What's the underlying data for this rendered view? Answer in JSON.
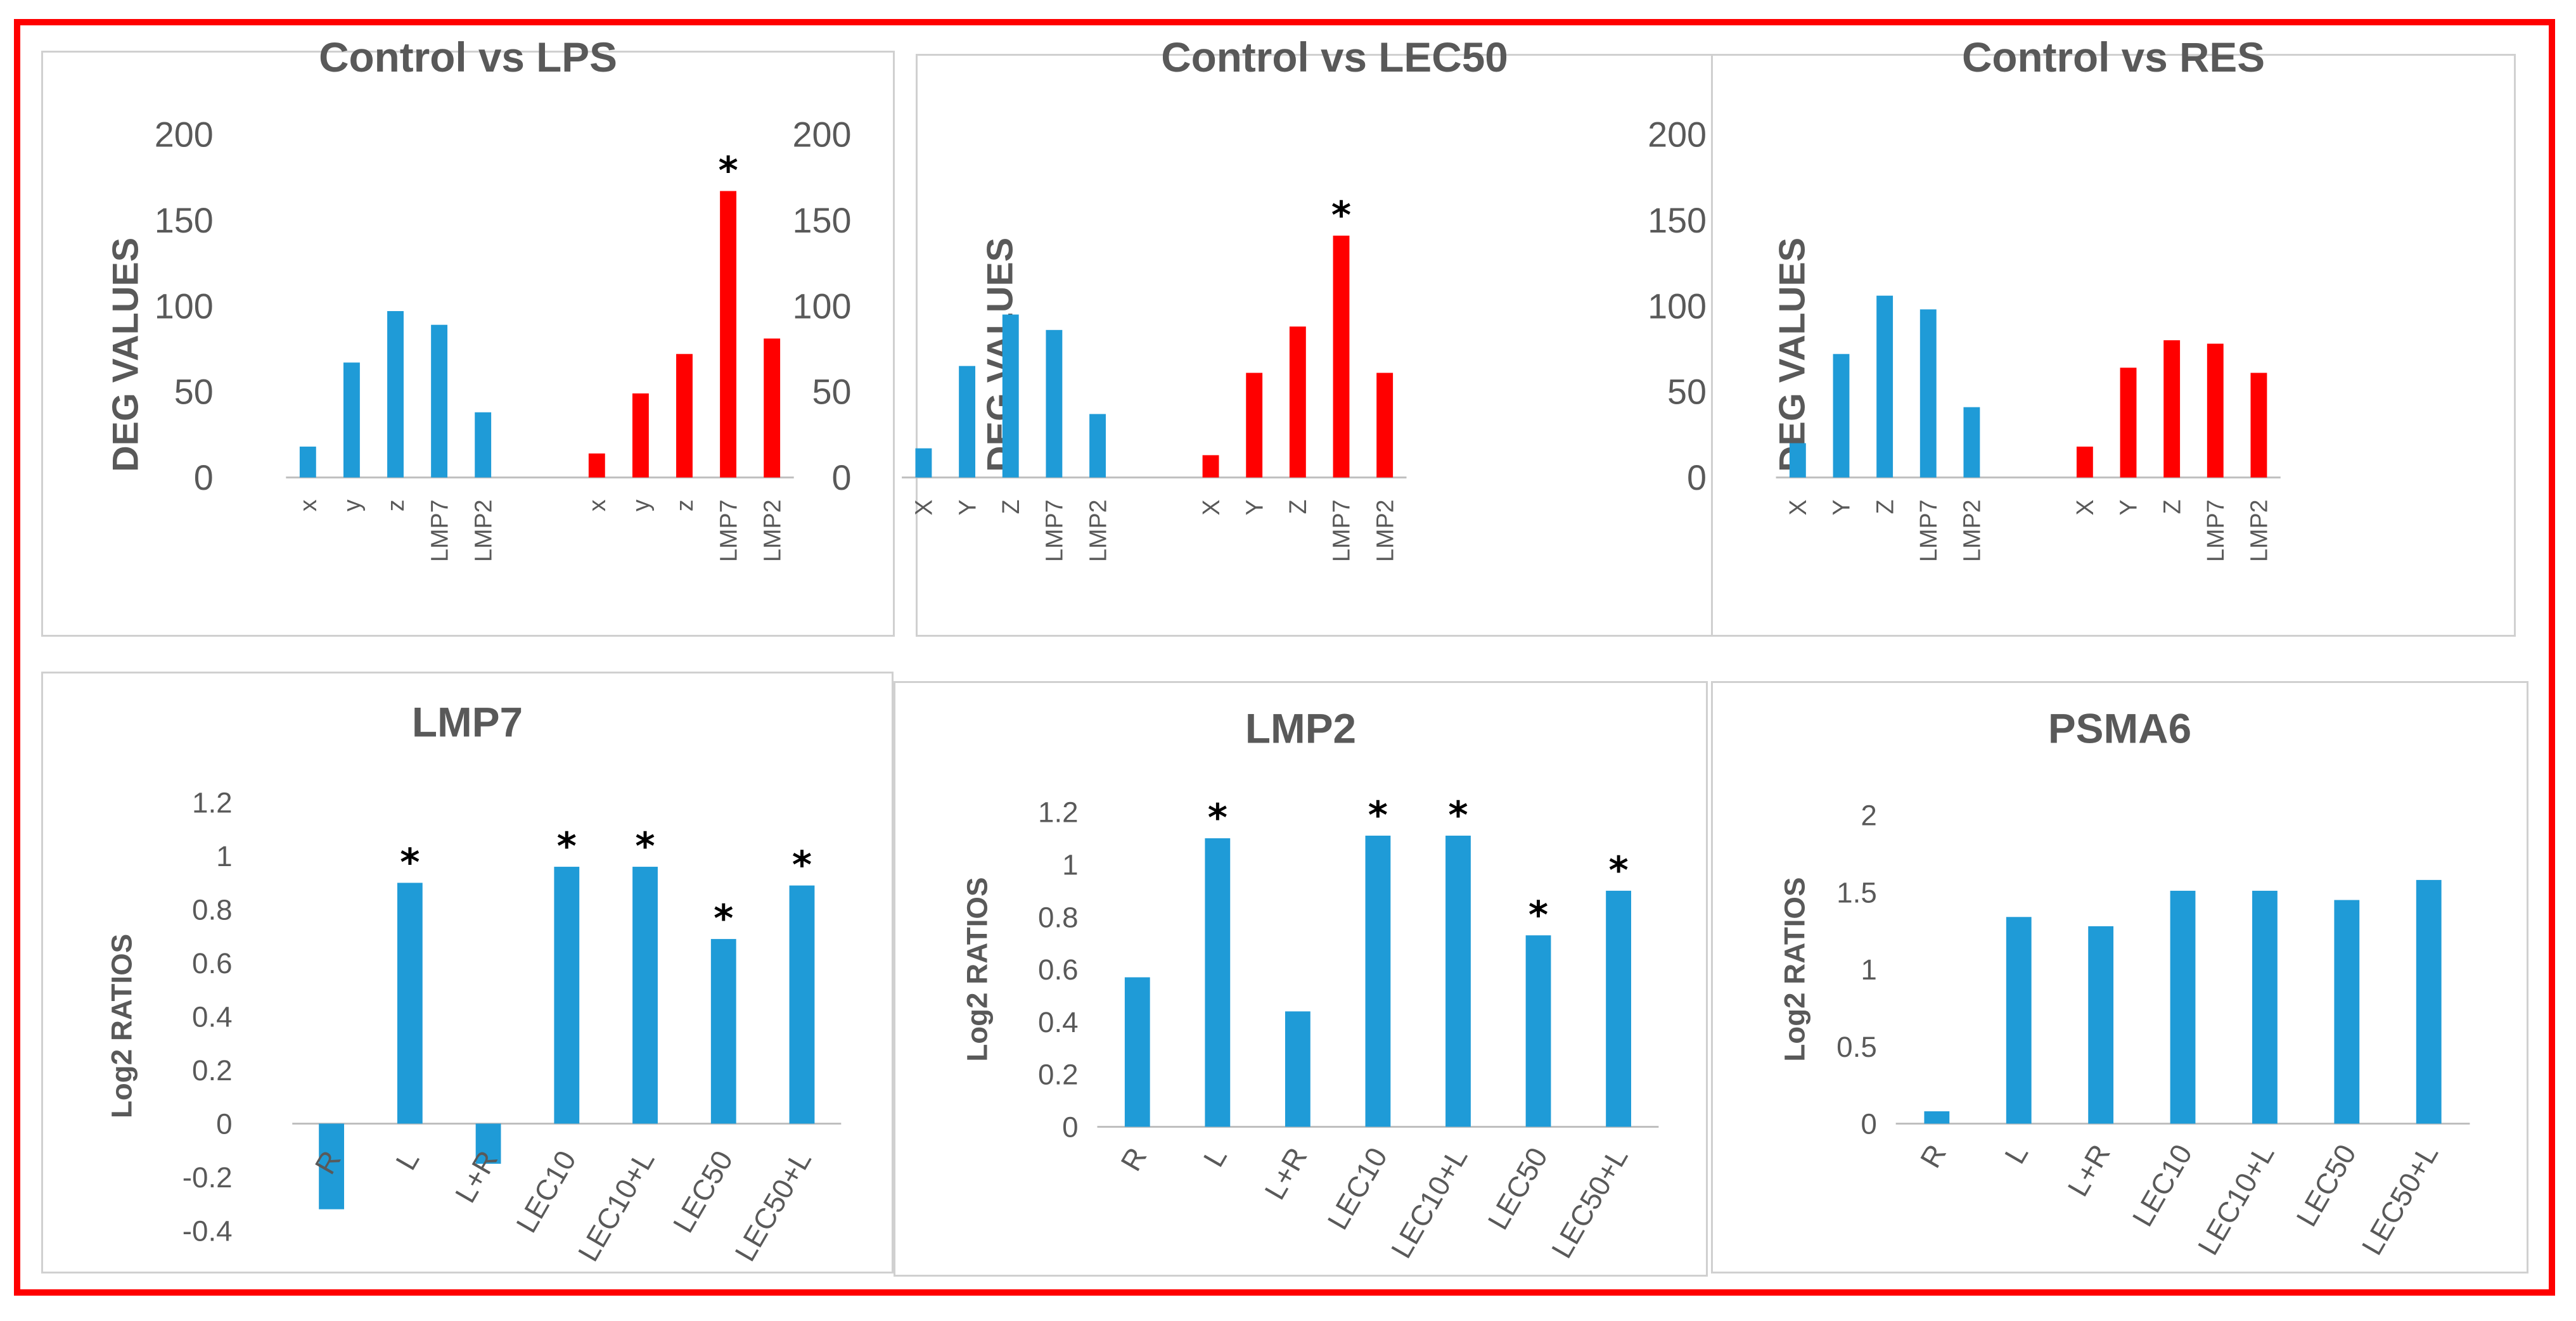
{
  "colors": {
    "blue": "#1f9bd7",
    "red": "#ff0000",
    "frame": "#ff0000",
    "axis": "#bfbfbf",
    "text": "#595959"
  },
  "chart_data": [
    {
      "type": "bar",
      "title": "Control vs LPS",
      "ylabel": "DEG VALUES",
      "yticks": [
        "200",
        "150",
        "100",
        "50",
        "0"
      ],
      "ylim": [
        0,
        200
      ],
      "categories": [
        "x",
        "y",
        "z",
        "LMP7",
        "LMP2",
        "x",
        "y",
        "z",
        "LMP7",
        "LMP2"
      ],
      "values": [
        18,
        67,
        97,
        89,
        38,
        14,
        49,
        72,
        167,
        81
      ],
      "bar_colors": [
        "blue",
        "blue",
        "blue",
        "blue",
        "blue",
        "red",
        "red",
        "red",
        "red",
        "red"
      ],
      "significant": [
        false,
        false,
        false,
        false,
        false,
        false,
        false,
        false,
        true,
        false
      ]
    },
    {
      "type": "bar",
      "title": "Control vs LEC50",
      "ylabel": "DEG VALUES",
      "yticks": [
        "200",
        "150",
        "100",
        "50",
        "0"
      ],
      "ylim": [
        0,
        200
      ],
      "categories": [
        "X",
        "Y",
        "Z",
        "LMP7",
        "LMP2",
        "X",
        "Y",
        "Z",
        "LMP7",
        "LMP2"
      ],
      "values": [
        17,
        65,
        95,
        86,
        37,
        13,
        61,
        88,
        141,
        61
      ],
      "bar_colors": [
        "blue",
        "blue",
        "blue",
        "blue",
        "blue",
        "red",
        "red",
        "red",
        "red",
        "red"
      ],
      "significant": [
        false,
        false,
        false,
        false,
        false,
        false,
        false,
        false,
        true,
        false
      ]
    },
    {
      "type": "bar",
      "title": "Control vs RES",
      "ylabel": "DEG VALUES",
      "yticks": [
        "200",
        "150",
        "100",
        "50",
        "0"
      ],
      "ylim": [
        0,
        200
      ],
      "categories": [
        "X",
        "Y",
        "Z",
        "LMP7",
        "LMP2",
        "X",
        "Y",
        "Z",
        "LMP7",
        "LMP2"
      ],
      "values": [
        20,
        72,
        106,
        98,
        41,
        18,
        64,
        80,
        78,
        61
      ],
      "bar_colors": [
        "blue",
        "blue",
        "blue",
        "blue",
        "blue",
        "red",
        "red",
        "red",
        "red",
        "red"
      ],
      "significant": [
        false,
        false,
        false,
        false,
        false,
        false,
        false,
        false,
        false,
        false
      ]
    },
    {
      "type": "bar",
      "title": "LMP7",
      "ylabel": "Log2 RATIOS",
      "yticks": [
        "1.2",
        "1",
        "0.8",
        "0.6",
        "0.4",
        "0.2",
        "0",
        "-0.2",
        "-0.4"
      ],
      "ylim": [
        -0.4,
        1.2
      ],
      "categories": [
        "R",
        "L",
        "L+R",
        "LEC10",
        "LEC10+L",
        "LEC50",
        "LEC50+L"
      ],
      "values": [
        -0.32,
        0.9,
        -0.15,
        0.96,
        0.96,
        0.69,
        0.89
      ],
      "bar_colors": [
        "blue",
        "blue",
        "blue",
        "blue",
        "blue",
        "blue",
        "blue"
      ],
      "significant": [
        false,
        true,
        false,
        true,
        true,
        true,
        true
      ]
    },
    {
      "type": "bar",
      "title": "LMP2",
      "ylabel": "Log2 RATIOS",
      "yticks": [
        "1.2",
        "1",
        "0.8",
        "0.6",
        "0.4",
        "0.2",
        "0"
      ],
      "ylim": [
        0,
        1.2
      ],
      "categories": [
        "R",
        "L",
        "L+R",
        "LEC10",
        "LEC10+L",
        "LEC50",
        "LEC50+L"
      ],
      "values": [
        0.57,
        1.1,
        0.44,
        1.11,
        1.11,
        0.73,
        0.9
      ],
      "bar_colors": [
        "blue",
        "blue",
        "blue",
        "blue",
        "blue",
        "blue",
        "blue"
      ],
      "significant": [
        false,
        true,
        false,
        true,
        true,
        true,
        true
      ]
    },
    {
      "type": "bar",
      "title": "PSMA6",
      "ylabel": "Log2 RATIOS",
      "yticks": [
        "2",
        "1.5",
        "1",
        "0.5",
        "0"
      ],
      "ylim": [
        0,
        2
      ],
      "categories": [
        "R",
        "L",
        "L+R",
        "LEC10",
        "LEC10+L",
        "LEC50",
        "LEC50+L"
      ],
      "values": [
        0.08,
        1.34,
        1.28,
        1.51,
        1.51,
        1.45,
        1.58
      ],
      "bar_colors": [
        "blue",
        "blue",
        "blue",
        "blue",
        "blue",
        "blue",
        "blue"
      ],
      "significant": [
        false,
        false,
        false,
        false,
        false,
        false,
        false
      ]
    }
  ]
}
